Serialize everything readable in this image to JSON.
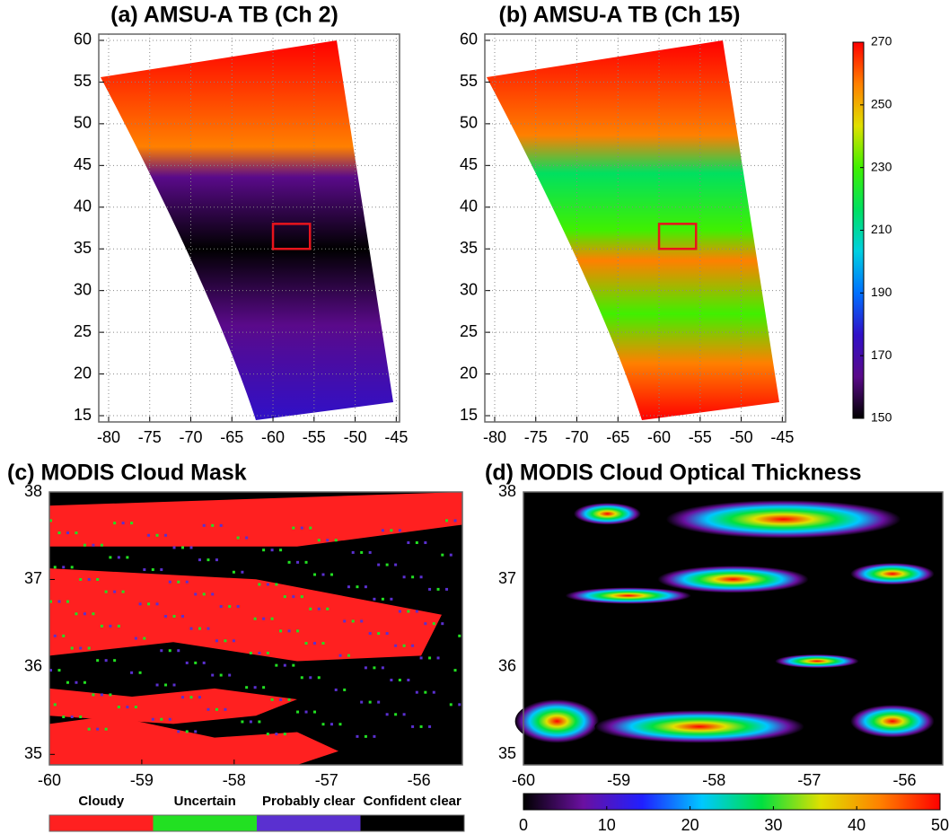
{
  "chart_data": [
    {
      "type": "map",
      "title": "(a) AMSU-A TB (Ch 2)",
      "xlim": [
        -81.2,
        -44.6
      ],
      "ylim": [
        14.25,
        60.75
      ],
      "xticks": [
        -80,
        -75,
        -70,
        -65,
        -60,
        -55,
        -50,
        -45
      ],
      "yticks": [
        15,
        20,
        25,
        30,
        35,
        40,
        45,
        50,
        55,
        60
      ],
      "grid": true,
      "highlight": {
        "xlim": [
          -60,
          -55.5
        ],
        "ylim": [
          35,
          38
        ],
        "color": "#e8141c"
      }
    },
    {
      "type": "map",
      "title": "(b) AMSU-A TB (Ch 15)",
      "xlim": [
        -81.2,
        -44.6
      ],
      "ylim": [
        14.25,
        60.75
      ],
      "xticks": [
        -80,
        -75,
        -70,
        -65,
        -60,
        -55,
        -50,
        -45
      ],
      "yticks": [
        15,
        20,
        25,
        30,
        35,
        40,
        45,
        50,
        55,
        60
      ],
      "grid": true,
      "highlight": {
        "xlim": [
          -60,
          -55.5
        ],
        "ylim": [
          35,
          38
        ],
        "color": "#e8141c"
      },
      "colorbar": {
        "lim": [
          150,
          270
        ],
        "ticks": [
          150,
          170,
          190,
          210,
          230,
          250,
          270
        ],
        "colors": [
          "#000000",
          "#5a0a8a",
          "#3010c8",
          "#0070ff",
          "#00d0e0",
          "#00e060",
          "#40f000",
          "#e0e000",
          "#ff8000",
          "#ff0000"
        ]
      }
    },
    {
      "type": "map",
      "title": "(c) MODIS Cloud Mask",
      "xlim": [
        -60,
        -55.53
      ],
      "ylim": [
        34.88,
        38
      ],
      "xticks": [
        -60,
        -59,
        -58,
        -57,
        -56
      ],
      "yticks": [
        35,
        36,
        37,
        38
      ],
      "grid": false,
      "legend": {
        "categories": [
          "Cloudy",
          "Uncertain",
          "Probably clear",
          "Confident clear"
        ],
        "colors": [
          "#ff2020",
          "#22e022",
          "#5a30d0",
          "#000000"
        ]
      }
    },
    {
      "type": "map",
      "title": "(d) MODIS Cloud Optical Thickness",
      "xlim": [
        -60,
        -55.6
      ],
      "ylim": [
        34.88,
        38
      ],
      "xticks": [
        -60,
        -59,
        -58,
        -57,
        -56
      ],
      "yticks": [
        35,
        36,
        37,
        38
      ],
      "grid": false,
      "colorbar": {
        "lim": [
          0,
          50
        ],
        "ticks": [
          0,
          10,
          20,
          30,
          40,
          50
        ],
        "colors": [
          "#000000",
          "#6a10a0",
          "#2020ff",
          "#00c8ff",
          "#00e040",
          "#e0e000",
          "#ff8000",
          "#ff0000"
        ]
      }
    }
  ]
}
